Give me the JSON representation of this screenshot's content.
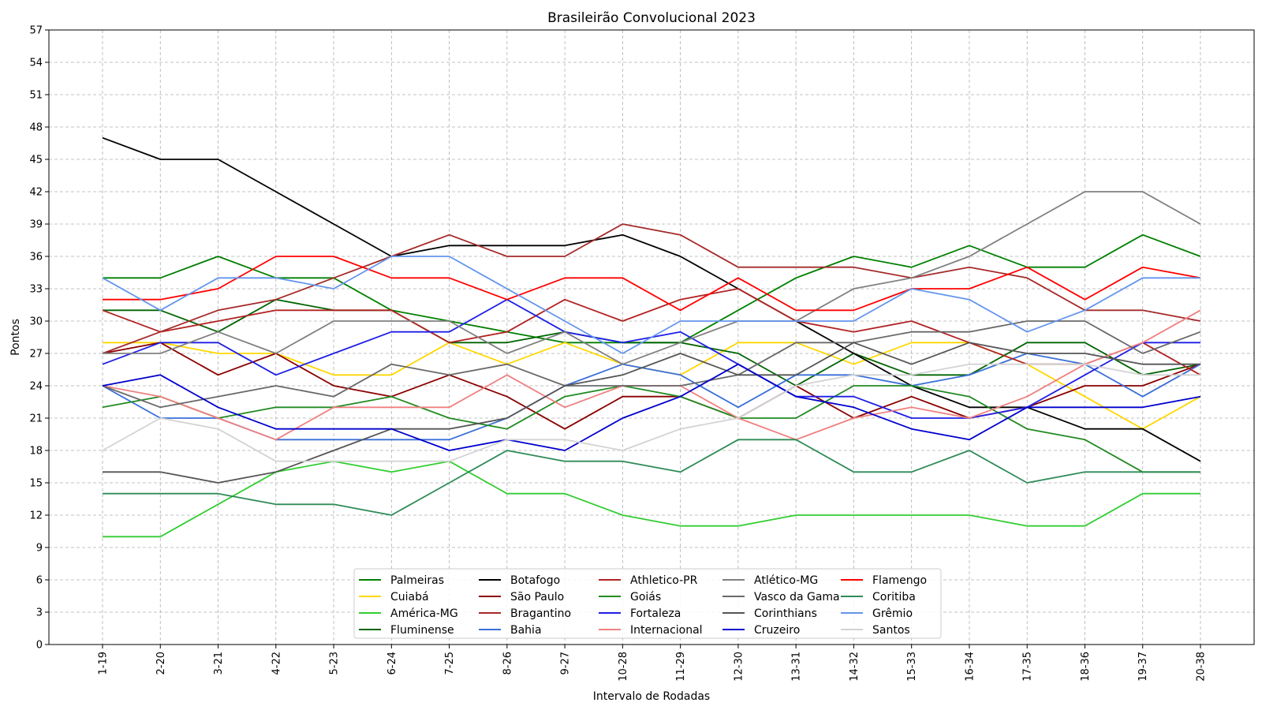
{
  "chart_data": {
    "type": "line",
    "title": "Brasileirão Convolucional 2023",
    "xlabel": "Intervalo de Rodadas",
    "ylabel": "Pontos",
    "ylim": [
      0,
      57
    ],
    "yticks": [
      0,
      3,
      6,
      9,
      12,
      15,
      18,
      21,
      24,
      27,
      30,
      33,
      36,
      39,
      42,
      45,
      48,
      51,
      54,
      57
    ],
    "grid": true,
    "legend_position": "lower-center",
    "categories": [
      "1-19",
      "2-20",
      "3-21",
      "4-22",
      "5-23",
      "6-24",
      "7-25",
      "8-26",
      "9-27",
      "10-28",
      "11-29",
      "12-30",
      "13-31",
      "14-32",
      "15-33",
      "16-34",
      "17-35",
      "18-36",
      "19-37",
      "20-38"
    ],
    "series": [
      {
        "name": "Palmeiras",
        "color": "#008000",
        "values": [
          34,
          34,
          36,
          34,
          34,
          31,
          30,
          29,
          28,
          28,
          28,
          31,
          34,
          36,
          35,
          37,
          35,
          35,
          38,
          36
        ]
      },
      {
        "name": "Cuiabá",
        "color": "#FFD700",
        "values": [
          28,
          28,
          27,
          27,
          25,
          25,
          28,
          26,
          28,
          26,
          25,
          28,
          28,
          26,
          28,
          28,
          26,
          23,
          20,
          23
        ]
      },
      {
        "name": "América-MG",
        "color": "#32CD32",
        "values": [
          10,
          10,
          13,
          16,
          17,
          16,
          17,
          14,
          14,
          12,
          11,
          11,
          12,
          12,
          12,
          12,
          11,
          11,
          14,
          14
        ]
      },
      {
        "name": "Fluminense",
        "color": "#006400",
        "values": [
          31,
          31,
          29,
          32,
          31,
          31,
          28,
          28,
          29,
          28,
          28,
          27,
          24,
          27,
          25,
          25,
          28,
          28,
          25,
          26
        ]
      },
      {
        "name": "Botafogo",
        "color": "#000000",
        "values": [
          47,
          45,
          45,
          42,
          39,
          36,
          37,
          37,
          37,
          38,
          36,
          33,
          30,
          27,
          24,
          22,
          22,
          20,
          20,
          17
        ]
      },
      {
        "name": "São Paulo",
        "color": "#8B0000",
        "values": [
          27,
          28,
          25,
          27,
          24,
          23,
          25,
          23,
          20,
          23,
          23,
          21,
          24,
          21,
          23,
          21,
          22,
          24,
          24,
          26
        ]
      },
      {
        "name": "Bragantino",
        "color": "#A52A2A",
        "values": [
          27,
          29,
          31,
          32,
          34,
          36,
          38,
          36,
          36,
          39,
          38,
          35,
          35,
          35,
          34,
          35,
          34,
          31,
          31,
          30
        ]
      },
      {
        "name": "Bahia",
        "color": "#3A6FD8",
        "values": [
          24,
          21,
          21,
          19,
          19,
          19,
          19,
          21,
          24,
          26,
          25,
          22,
          25,
          25,
          24,
          25,
          27,
          26,
          23,
          26
        ]
      },
      {
        "name": "Athletico-PR",
        "color": "#B22222",
        "values": [
          31,
          29,
          30,
          31,
          31,
          31,
          28,
          29,
          32,
          30,
          32,
          33,
          30,
          29,
          30,
          28,
          26,
          26,
          28,
          25
        ]
      },
      {
        "name": "Goiás",
        "color": "#228B22",
        "values": [
          22,
          23,
          21,
          22,
          22,
          23,
          21,
          20,
          23,
          24,
          23,
          21,
          21,
          24,
          24,
          23,
          20,
          19,
          16,
          16
        ]
      },
      {
        "name": "Fortaleza",
        "color": "#1E1EE6",
        "values": [
          26,
          28,
          28,
          25,
          27,
          29,
          29,
          32,
          29,
          28,
          29,
          26,
          23,
          23,
          21,
          21,
          22,
          25,
          28,
          28
        ]
      },
      {
        "name": "Internacional",
        "color": "#F08080",
        "values": [
          24,
          23,
          21,
          19,
          22,
          22,
          22,
          25,
          22,
          24,
          24,
          21,
          19,
          21,
          22,
          21,
          23,
          26,
          28,
          31
        ]
      },
      {
        "name": "Atlético-MG",
        "color": "#808080",
        "values": [
          27,
          27,
          29,
          27,
          30,
          30,
          30,
          27,
          29,
          26,
          28,
          30,
          30,
          33,
          34,
          36,
          39,
          42,
          42,
          39
        ]
      },
      {
        "name": "Vasco da Gama",
        "color": "#696969",
        "values": [
          24,
          22,
          23,
          24,
          23,
          26,
          25,
          26,
          24,
          24,
          24,
          25,
          28,
          28,
          29,
          29,
          30,
          30,
          27,
          29
        ]
      },
      {
        "name": "Corinthians",
        "color": "#555555",
        "values": [
          16,
          16,
          15,
          16,
          18,
          20,
          20,
          21,
          24,
          25,
          27,
          25,
          25,
          28,
          26,
          28,
          27,
          27,
          26,
          26
        ]
      },
      {
        "name": "Cruzeiro",
        "color": "#0000CD",
        "values": [
          24,
          25,
          22,
          20,
          20,
          20,
          18,
          19,
          18,
          21,
          23,
          26,
          23,
          22,
          20,
          19,
          22,
          22,
          22,
          23
        ]
      },
      {
        "name": "Flamengo",
        "color": "#FF0000",
        "values": [
          32,
          32,
          33,
          36,
          36,
          34,
          34,
          32,
          34,
          34,
          31,
          34,
          31,
          31,
          33,
          33,
          35,
          32,
          35,
          34
        ]
      },
      {
        "name": "Coritiba",
        "color": "#2E8B57",
        "values": [
          14,
          14,
          14,
          13,
          13,
          12,
          15,
          18,
          17,
          17,
          16,
          19,
          19,
          16,
          16,
          18,
          15,
          16,
          16,
          16
        ]
      },
      {
        "name": "Grêmio",
        "color": "#6495ED",
        "values": [
          34,
          31,
          34,
          34,
          33,
          36,
          36,
          33,
          30,
          27,
          30,
          30,
          30,
          30,
          33,
          32,
          29,
          31,
          34,
          34
        ]
      },
      {
        "name": "Santos",
        "color": "#D3D3D3",
        "values": [
          18,
          21,
          20,
          17,
          17,
          17,
          17,
          19,
          19,
          18,
          20,
          21,
          24,
          25,
          25,
          26,
          26,
          26,
          25,
          25
        ]
      }
    ]
  }
}
